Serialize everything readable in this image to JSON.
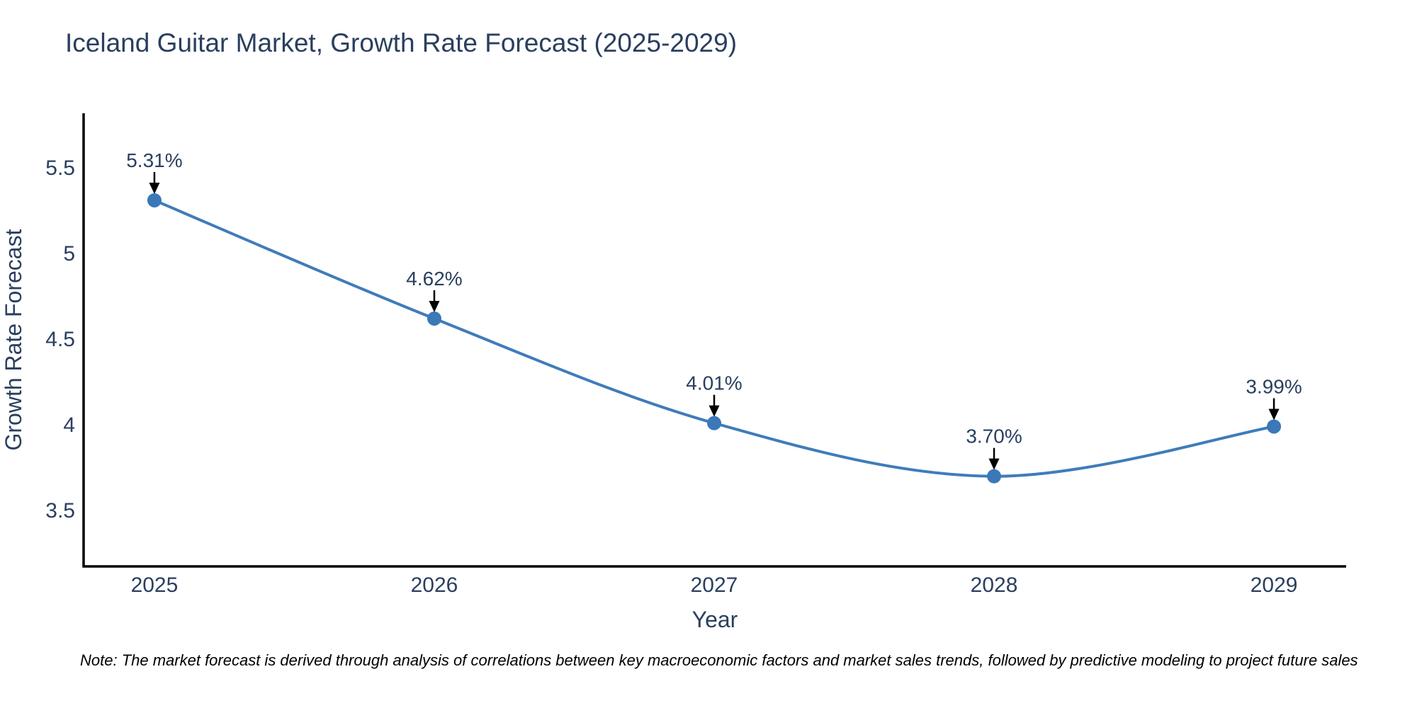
{
  "page": {
    "note": "Note: The market forecast is derived through analysis of correlations between key macroeconomic factors and market sales trends, followed by predictive modeling to project future sales"
  },
  "chart_data": {
    "type": "line",
    "title": "Iceland Guitar Market, Growth Rate Forecast (2025-2029)",
    "xlabel": "Year",
    "ylabel": "Growth Rate Forecast",
    "x": [
      2025,
      2026,
      2027,
      2028,
      2029
    ],
    "y": [
      5.31,
      4.62,
      4.01,
      3.7,
      3.99
    ],
    "point_labels": [
      "5.31%",
      "4.62%",
      "4.01%",
      "3.70%",
      "3.99%"
    ],
    "x_tick_labels": [
      "2025",
      "2026",
      "2027",
      "2028",
      "2029"
    ],
    "y_ticks": [
      3.5,
      4,
      4.5,
      5,
      5.5
    ],
    "y_tick_labels": [
      "3.5",
      "4",
      "4.5",
      "5",
      "5.5"
    ],
    "xlim": [
      2024.747,
      2029.258
    ],
    "ylim": [
      3.174,
      5.818
    ],
    "grid": false,
    "legend": false,
    "smooth": true,
    "colors": {
      "line": "#3f7cba",
      "marker": "#3a78b8",
      "axis": "#000000",
      "tick_text": "#2a3f5f",
      "annotation_arrow": "#000000"
    }
  }
}
